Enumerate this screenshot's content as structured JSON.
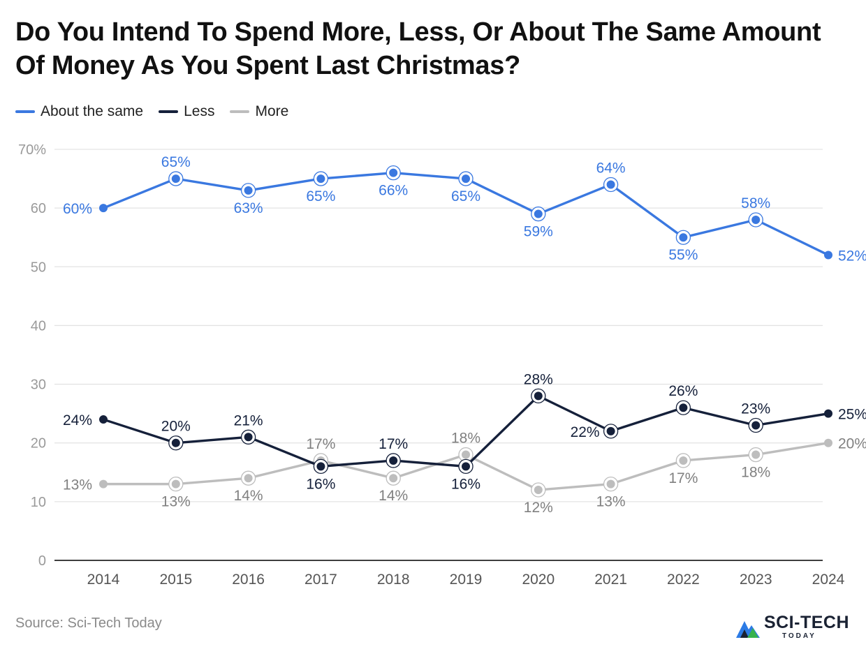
{
  "chart_data": {
    "type": "line",
    "title": "Do You Intend To Spend More, Less, Or About The Same Amount Of Money As You Spent Last Christmas?",
    "x": [
      "2014",
      "2015",
      "2016",
      "2017",
      "2018",
      "2019",
      "2020",
      "2021",
      "2022",
      "2023",
      "2024"
    ],
    "ylim": [
      0,
      70
    ],
    "yticks": [
      0,
      10,
      20,
      30,
      40,
      50,
      60,
      70
    ],
    "ytick_labels": [
      "0",
      "10",
      "20",
      "30",
      "40",
      "50",
      "60",
      "70%"
    ],
    "grid": true,
    "legend_position": "top-left",
    "series": [
      {
        "name": "About the same",
        "color": "#3a78e0",
        "label_color": "#3a78e0",
        "values": [
          60,
          65,
          63,
          65,
          66,
          65,
          59,
          64,
          55,
          58,
          52
        ],
        "labels": [
          "60%",
          "65%",
          "63%",
          "65%",
          "66%",
          "65%",
          "59%",
          "64%",
          "55%",
          "58%",
          "52%"
        ],
        "label_pos": [
          "left",
          "above",
          "below",
          "below",
          "below",
          "below",
          "below",
          "above",
          "below",
          "above",
          "right"
        ]
      },
      {
        "name": "Less",
        "color": "#15203a",
        "label_color": "#15203a",
        "values": [
          24,
          20,
          21,
          16,
          17,
          16,
          28,
          22,
          26,
          23,
          25
        ],
        "labels": [
          "24%",
          "20%",
          "21%",
          "16%",
          "17%",
          "16%",
          "28%",
          "22%",
          "26%",
          "23%",
          "25%"
        ],
        "label_pos": [
          "left",
          "above",
          "above",
          "below",
          "above",
          "below",
          "above",
          "left",
          "above",
          "above",
          "right"
        ]
      },
      {
        "name": "More",
        "color": "#bdbdbd",
        "label_color": "#808080",
        "values": [
          13,
          13,
          14,
          17,
          14,
          18,
          12,
          13,
          17,
          18,
          20
        ],
        "labels": [
          "13%",
          "13%",
          "14%",
          "17%",
          "14%",
          "18%",
          "12%",
          "13%",
          "17%",
          "18%",
          "20%"
        ],
        "label_pos": [
          "left",
          "below",
          "below",
          "above",
          "below",
          "above",
          "below",
          "below",
          "below",
          "below",
          "right"
        ]
      }
    ],
    "source": "Source: Sci-Tech Today"
  },
  "colors": {
    "axis": "#222222",
    "grid": "#e3e3e3",
    "tick": "#9a9a9a"
  },
  "logo": {
    "main": "SCI-TECH",
    "sub": "TODAY"
  }
}
